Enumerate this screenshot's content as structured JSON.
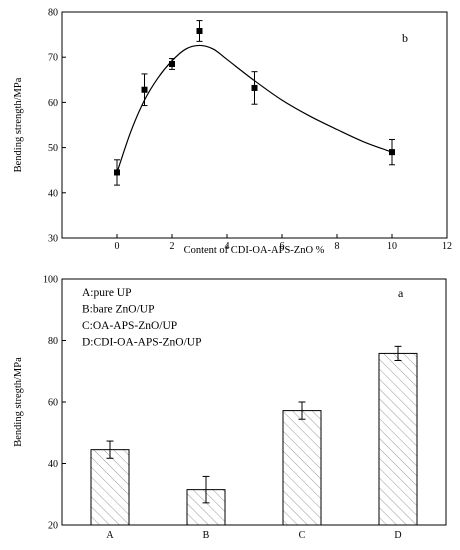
{
  "chart_data": [
    {
      "type": "line",
      "panel_label": "b",
      "xlabel": "Content of CDI-OA-APS-ZnO %",
      "ylabel": "Bending strength/MPa",
      "xlim": [
        -2,
        12
      ],
      "ylim": [
        30,
        80
      ],
      "xticks": [
        0,
        2,
        4,
        6,
        8,
        10,
        12
      ],
      "yticks": [
        30,
        40,
        50,
        60,
        70,
        80
      ],
      "grid": false,
      "points": [
        {
          "x": 0,
          "y": 44.5,
          "err": 2.8
        },
        {
          "x": 1,
          "y": 62.8,
          "err": 3.5
        },
        {
          "x": 2,
          "y": 68.5,
          "err": 1.2
        },
        {
          "x": 3,
          "y": 75.8,
          "err": 2.3
        },
        {
          "x": 5,
          "y": 63.2,
          "err": 3.6
        },
        {
          "x": 10,
          "y": 49.0,
          "err": 2.8
        }
      ],
      "curve": [
        {
          "x": 0,
          "y": 44.5
        },
        {
          "x": 0.5,
          "y": 53.5
        },
        {
          "x": 1,
          "y": 60.5
        },
        {
          "x": 1.5,
          "y": 65.5
        },
        {
          "x": 2,
          "y": 69.2
        },
        {
          "x": 2.5,
          "y": 71.8
        },
        {
          "x": 3,
          "y": 72.6
        },
        {
          "x": 3.5,
          "y": 71.8
        },
        {
          "x": 4,
          "y": 69.5
        },
        {
          "x": 5,
          "y": 64.8
        },
        {
          "x": 6,
          "y": 60.5
        },
        {
          "x": 7,
          "y": 57.0
        },
        {
          "x": 8,
          "y": 54.0
        },
        {
          "x": 9,
          "y": 51.2
        },
        {
          "x": 10,
          "y": 49.0
        }
      ]
    },
    {
      "type": "bar",
      "panel_label": "a",
      "xlabel": "",
      "ylabel": "Bending stregth/MPa",
      "ylim": [
        20,
        100
      ],
      "yticks": [
        20,
        40,
        60,
        80,
        100
      ],
      "categories": [
        "A",
        "B",
        "C",
        "D"
      ],
      "values": [
        44.5,
        31.5,
        57.2,
        75.8
      ],
      "errors": [
        2.8,
        4.3,
        2.8,
        2.3
      ],
      "hatch": "diagonal",
      "legend": [
        "A:pure UP",
        "B:bare ZnO/UP",
        "C:OA-APS-ZnO/UP",
        "D:CDI-OA-APS-ZnO/UP"
      ]
    }
  ]
}
